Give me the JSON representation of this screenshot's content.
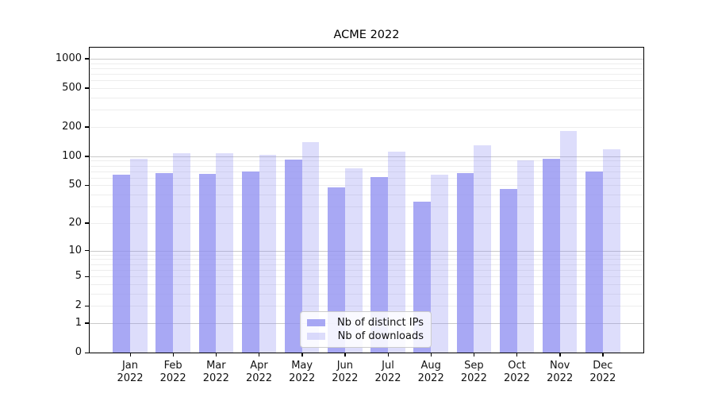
{
  "chart_data": {
    "type": "bar",
    "title": "ACME 2022",
    "categories": [
      "Jan",
      "Feb",
      "Mar",
      "Apr",
      "May",
      "Jun",
      "Jul",
      "Aug",
      "Sep",
      "Oct",
      "Nov",
      "Dec"
    ],
    "category_year": "2022",
    "series": [
      {
        "name": "Nb of distinct IPs",
        "values": [
          64,
          67,
          66,
          69,
          93,
          48,
          61,
          34,
          67,
          46,
          94,
          70
        ],
        "color": "rgba(144,144,241,0.78)"
      },
      {
        "name": "Nb of downloads",
        "values": [
          95,
          107,
          107,
          104,
          140,
          75,
          111,
          64,
          130,
          91,
          183,
          117
        ],
        "color": "rgba(144,144,241,0.30)"
      }
    ],
    "yscale": "symlog",
    "y_ticks": [
      1000,
      500,
      200,
      100,
      50,
      20,
      10,
      5,
      2,
      1,
      0
    ],
    "ylim": [
      0,
      1290
    ],
    "xlabel": "",
    "ylabel": "",
    "grid": true,
    "legend_position": "lower center"
  },
  "colors": {
    "axis": "#000000",
    "grid_major": "#c9c9c9",
    "grid_minor": "#ededed",
    "legend_border": "#cccccc",
    "text": "#111111"
  }
}
